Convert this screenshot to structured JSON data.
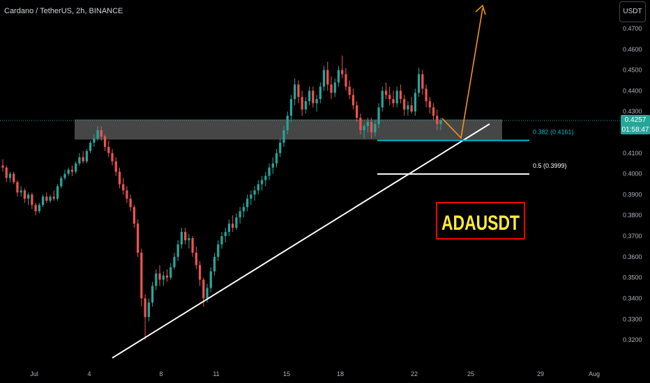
{
  "header": {
    "title": "Cardano / TetherUS, 2h, BINANCE"
  },
  "toolbar": {
    "currency": "USDT"
  },
  "price_label": {
    "price": "0.4257",
    "countdown": "01:58:47"
  },
  "colors": {
    "up": "#26a69a",
    "down": "#ef5350",
    "zone": "#808080",
    "support": "#00bcd4",
    "arrow": "#f7931a",
    "label_bg": "#ff0000",
    "label_text": "#ffeb3b"
  },
  "annotations": {
    "fib382": "0.382 (0.4161)",
    "fib5": "0.5 (0.3999)",
    "symbol_label": "ADAUSDT"
  },
  "chart_data": {
    "type": "candlestick",
    "title": "Cardano / TetherUS, 2h, BINANCE",
    "y_ticks": [
      "0.4700",
      "0.4600",
      "0.4500",
      "0.4400",
      "0.4300",
      "0.4200",
      "0.4100",
      "0.4000",
      "0.3900",
      "0.3800",
      "0.3700",
      "0.3600",
      "0.3500",
      "0.3400",
      "0.3300",
      "0.3200"
    ],
    "x_ticks": [
      "Jul",
      "4",
      "8",
      "11",
      "15",
      "18",
      "22",
      "25",
      "29",
      "Aug"
    ],
    "ylim": [
      0.315,
      0.473
    ],
    "current_price": 0.4257,
    "zone": [
      0.4165,
      0.4262
    ],
    "fib_levels": [
      0.4161,
      0.3999
    ],
    "candles": [
      [
        0.404,
        0.407,
        0.401,
        0.403
      ],
      [
        0.403,
        0.404,
        0.396,
        0.398
      ],
      [
        0.398,
        0.401,
        0.396,
        0.4
      ],
      [
        0.4,
        0.401,
        0.395,
        0.396
      ],
      [
        0.396,
        0.397,
        0.389,
        0.391
      ],
      [
        0.391,
        0.394,
        0.389,
        0.392
      ],
      [
        0.392,
        0.393,
        0.386,
        0.388
      ],
      [
        0.388,
        0.391,
        0.385,
        0.39
      ],
      [
        0.39,
        0.391,
        0.383,
        0.385
      ],
      [
        0.385,
        0.386,
        0.38,
        0.382
      ],
      [
        0.382,
        0.386,
        0.381,
        0.385
      ],
      [
        0.385,
        0.39,
        0.384,
        0.389
      ],
      [
        0.389,
        0.391,
        0.386,
        0.387
      ],
      [
        0.387,
        0.39,
        0.386,
        0.389
      ],
      [
        0.389,
        0.392,
        0.387,
        0.388
      ],
      [
        0.388,
        0.395,
        0.387,
        0.394
      ],
      [
        0.394,
        0.399,
        0.393,
        0.398
      ],
      [
        0.398,
        0.402,
        0.397,
        0.4
      ],
      [
        0.4,
        0.403,
        0.399,
        0.402
      ],
      [
        0.402,
        0.404,
        0.399,
        0.401
      ],
      [
        0.401,
        0.406,
        0.4,
        0.405
      ],
      [
        0.405,
        0.41,
        0.404,
        0.408
      ],
      [
        0.408,
        0.411,
        0.405,
        0.406
      ],
      [
        0.406,
        0.412,
        0.405,
        0.411
      ],
      [
        0.411,
        0.416,
        0.41,
        0.415
      ],
      [
        0.415,
        0.419,
        0.413,
        0.417
      ],
      [
        0.417,
        0.423,
        0.416,
        0.421
      ],
      [
        0.421,
        0.423,
        0.416,
        0.418
      ],
      [
        0.418,
        0.419,
        0.411,
        0.413
      ],
      [
        0.413,
        0.416,
        0.408,
        0.41
      ],
      [
        0.41,
        0.412,
        0.404,
        0.406
      ],
      [
        0.406,
        0.408,
        0.399,
        0.401
      ],
      [
        0.401,
        0.403,
        0.393,
        0.395
      ],
      [
        0.395,
        0.398,
        0.39,
        0.392
      ],
      [
        0.392,
        0.394,
        0.386,
        0.388
      ],
      [
        0.388,
        0.39,
        0.382,
        0.384
      ],
      [
        0.384,
        0.385,
        0.374,
        0.376
      ],
      [
        0.376,
        0.378,
        0.36,
        0.362
      ],
      [
        0.362,
        0.364,
        0.336,
        0.34
      ],
      [
        0.34,
        0.342,
        0.32,
        0.331
      ],
      [
        0.331,
        0.34,
        0.329,
        0.338
      ],
      [
        0.338,
        0.348,
        0.336,
        0.346
      ],
      [
        0.346,
        0.354,
        0.344,
        0.352
      ],
      [
        0.352,
        0.356,
        0.346,
        0.349
      ],
      [
        0.349,
        0.353,
        0.346,
        0.351
      ],
      [
        0.351,
        0.354,
        0.348,
        0.35
      ],
      [
        0.35,
        0.357,
        0.349,
        0.355
      ],
      [
        0.355,
        0.362,
        0.354,
        0.36
      ],
      [
        0.36,
        0.368,
        0.358,
        0.366
      ],
      [
        0.366,
        0.374,
        0.364,
        0.372
      ],
      [
        0.372,
        0.374,
        0.366,
        0.368
      ],
      [
        0.368,
        0.371,
        0.364,
        0.369
      ],
      [
        0.369,
        0.37,
        0.36,
        0.362
      ],
      [
        0.362,
        0.365,
        0.354,
        0.356
      ],
      [
        0.356,
        0.358,
        0.346,
        0.349
      ],
      [
        0.349,
        0.35,
        0.336,
        0.34
      ],
      [
        0.34,
        0.347,
        0.338,
        0.345
      ],
      [
        0.345,
        0.355,
        0.343,
        0.353
      ],
      [
        0.353,
        0.362,
        0.351,
        0.36
      ],
      [
        0.36,
        0.368,
        0.358,
        0.366
      ],
      [
        0.366,
        0.372,
        0.364,
        0.37
      ],
      [
        0.37,
        0.374,
        0.367,
        0.372
      ],
      [
        0.372,
        0.378,
        0.37,
        0.376
      ],
      [
        0.376,
        0.38,
        0.372,
        0.374
      ],
      [
        0.374,
        0.381,
        0.373,
        0.379
      ],
      [
        0.379,
        0.384,
        0.376,
        0.382
      ],
      [
        0.382,
        0.386,
        0.379,
        0.384
      ],
      [
        0.384,
        0.39,
        0.382,
        0.388
      ],
      [
        0.388,
        0.392,
        0.385,
        0.39
      ],
      [
        0.39,
        0.394,
        0.387,
        0.392
      ],
      [
        0.392,
        0.397,
        0.39,
        0.395
      ],
      [
        0.395,
        0.399,
        0.392,
        0.397
      ],
      [
        0.397,
        0.401,
        0.394,
        0.399
      ],
      [
        0.399,
        0.405,
        0.397,
        0.403
      ],
      [
        0.403,
        0.408,
        0.4,
        0.405
      ],
      [
        0.405,
        0.412,
        0.403,
        0.41
      ],
      [
        0.41,
        0.417,
        0.408,
        0.415
      ],
      [
        0.415,
        0.423,
        0.413,
        0.421
      ],
      [
        0.421,
        0.43,
        0.419,
        0.428
      ],
      [
        0.428,
        0.438,
        0.425,
        0.436
      ],
      [
        0.436,
        0.446,
        0.433,
        0.443
      ],
      [
        0.443,
        0.445,
        0.434,
        0.437
      ],
      [
        0.437,
        0.44,
        0.428,
        0.431
      ],
      [
        0.431,
        0.437,
        0.429,
        0.435
      ],
      [
        0.435,
        0.442,
        0.433,
        0.44
      ],
      [
        0.44,
        0.442,
        0.432,
        0.434
      ],
      [
        0.434,
        0.438,
        0.43,
        0.436
      ],
      [
        0.436,
        0.444,
        0.434,
        0.442
      ],
      [
        0.442,
        0.452,
        0.44,
        0.45
      ],
      [
        0.45,
        0.454,
        0.44,
        0.443
      ],
      [
        0.443,
        0.447,
        0.436,
        0.439
      ],
      [
        0.439,
        0.446,
        0.437,
        0.444
      ],
      [
        0.444,
        0.452,
        0.442,
        0.45
      ],
      [
        0.45,
        0.457,
        0.446,
        0.448
      ],
      [
        0.448,
        0.451,
        0.44,
        0.442
      ],
      [
        0.442,
        0.445,
        0.436,
        0.438
      ],
      [
        0.438,
        0.441,
        0.431,
        0.433
      ],
      [
        0.433,
        0.435,
        0.425,
        0.427
      ],
      [
        0.427,
        0.429,
        0.419,
        0.421
      ],
      [
        0.421,
        0.424,
        0.417,
        0.423
      ],
      [
        0.423,
        0.427,
        0.42,
        0.425
      ],
      [
        0.425,
        0.427,
        0.417,
        0.42
      ],
      [
        0.42,
        0.426,
        0.418,
        0.424
      ],
      [
        0.424,
        0.434,
        0.422,
        0.432
      ],
      [
        0.432,
        0.442,
        0.43,
        0.44
      ],
      [
        0.44,
        0.444,
        0.436,
        0.438
      ],
      [
        0.438,
        0.442,
        0.433,
        0.436
      ],
      [
        0.436,
        0.44,
        0.432,
        0.434
      ],
      [
        0.434,
        0.442,
        0.432,
        0.44
      ],
      [
        0.44,
        0.443,
        0.434,
        0.436
      ],
      [
        0.436,
        0.438,
        0.428,
        0.431
      ],
      [
        0.431,
        0.435,
        0.428,
        0.433
      ],
      [
        0.433,
        0.437,
        0.429,
        0.43
      ],
      [
        0.43,
        0.441,
        0.428,
        0.439
      ],
      [
        0.439,
        0.451,
        0.437,
        0.448
      ],
      [
        0.448,
        0.45,
        0.438,
        0.441
      ],
      [
        0.441,
        0.443,
        0.432,
        0.435
      ],
      [
        0.435,
        0.437,
        0.429,
        0.432
      ],
      [
        0.432,
        0.434,
        0.426,
        0.428
      ],
      [
        0.428,
        0.431,
        0.421,
        0.424
      ],
      [
        0.424,
        0.427,
        0.421,
        0.4257
      ]
    ]
  }
}
